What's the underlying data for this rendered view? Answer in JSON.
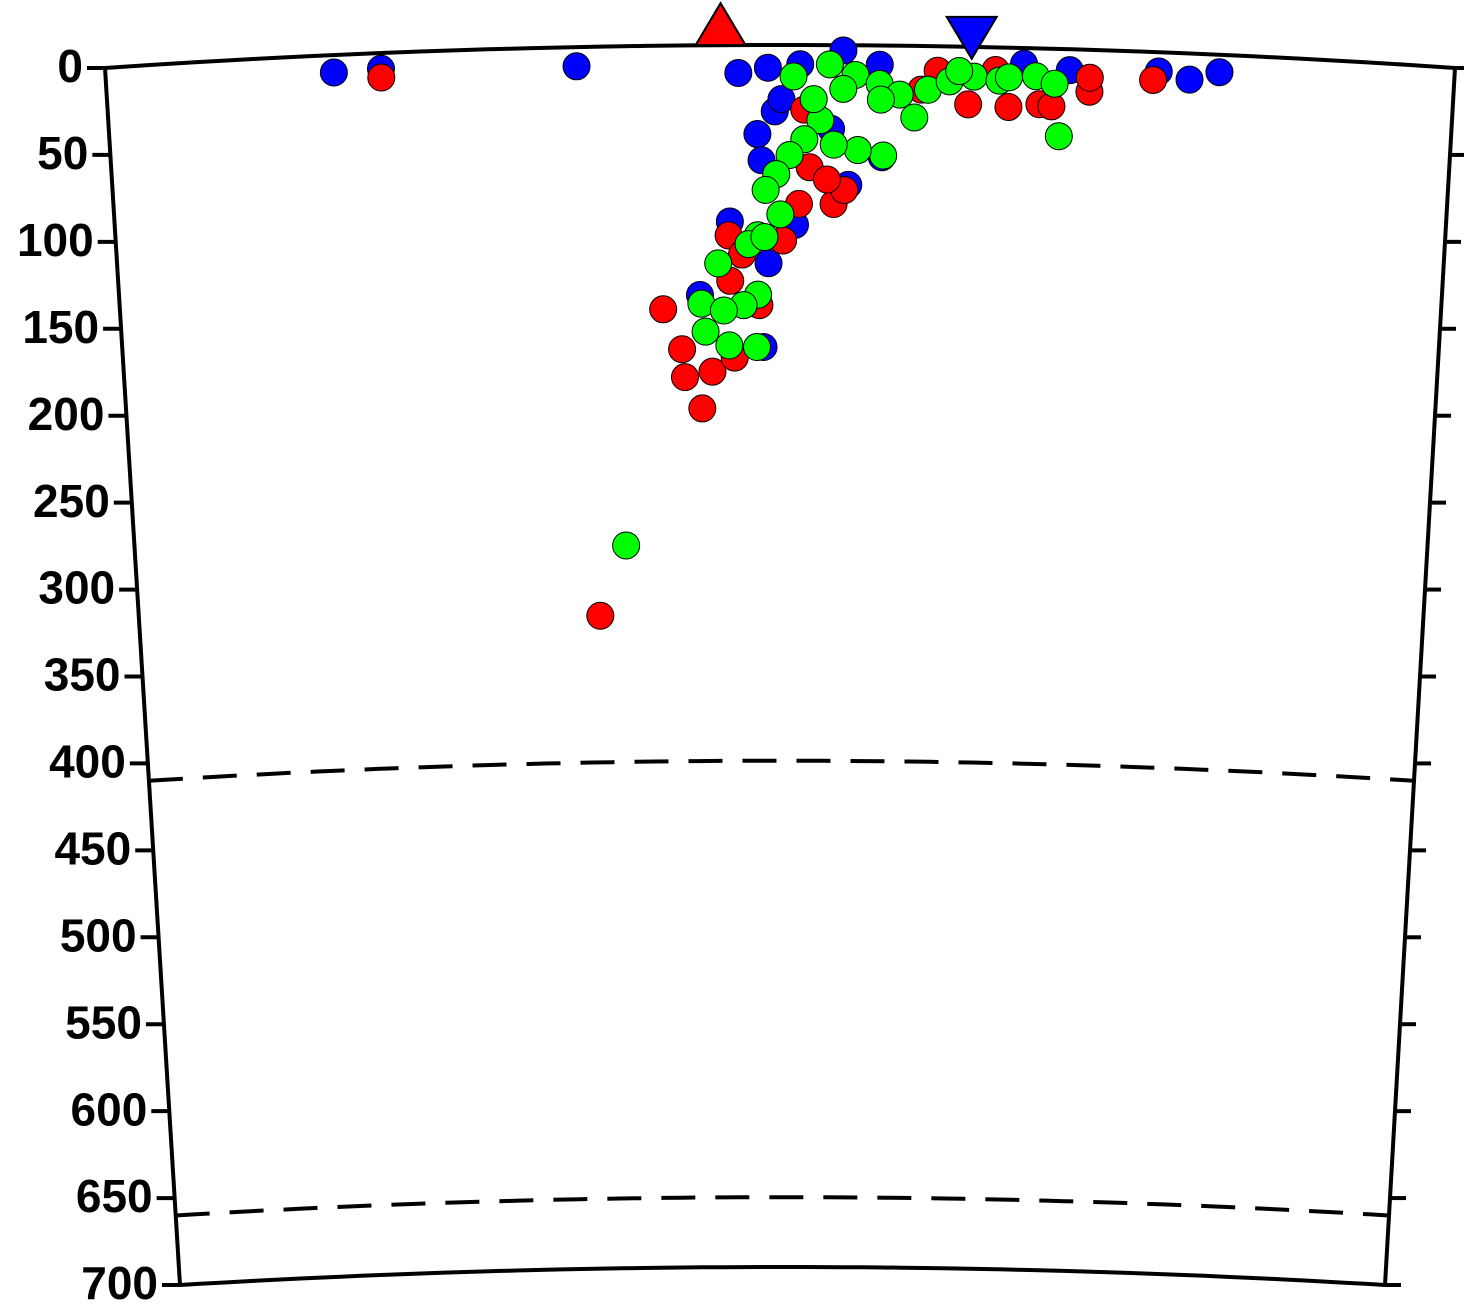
{
  "chart_data": {
    "type": "scatter",
    "xlim": [
      0,
      100
    ],
    "ylim": [
      0,
      700
    ],
    "yticks": [
      0,
      50,
      100,
      150,
      200,
      250,
      300,
      350,
      400,
      450,
      500,
      550,
      600,
      650,
      700
    ],
    "y_inverted": true,
    "reference_lines": [
      410,
      660
    ],
    "markers": [
      {
        "x": 45.6,
        "color": "#ff0000",
        "shape": "triangle-up"
      },
      {
        "x": 64.2,
        "color": "#0000ff",
        "shape": "triangle-down"
      }
    ],
    "series": [
      {
        "color": "#0000ff",
        "x": [
          16.9,
          20.4,
          34.9,
          46.9,
          49.1,
          51.5,
          54.7,
          57.4,
          68.1,
          71.5,
          78.1,
          80.4,
          82.6,
          48.3,
          48.6,
          49.6,
          49.1,
          46.2,
          51.1,
          43.9,
          48.7,
          57.6,
          55.1,
          53.8,
          50.1
        ],
        "values": [
          10,
          9,
          11,
          16,
          13,
          11,
          3,
          11,
          9,
          12,
          11,
          15,
          10,
          51,
          66,
          38,
          125,
          101,
          103,
          143,
          173,
          64,
          80,
          48,
          31
        ]
      },
      {
        "color": "#ff0000",
        "x": [
          20.4,
          41.1,
          42.5,
          42.7,
          44.0,
          44.8,
          46.5,
          48.4,
          46.1,
          47.1,
          46.2,
          50.2,
          51.4,
          54.0,
          54.8,
          52.2,
          53.5,
          51.8,
          60.5,
          64.0,
          67.0,
          69.3,
          70.2,
          73.0,
          73.0,
          77.7,
          61.7,
          66.0,
          35.9
        ],
        "values": [
          14,
          151,
          174,
          190,
          208,
          187,
          179,
          149,
          109,
          120,
          135,
          112,
          91,
          91,
          83,
          70,
          77,
          37,
          25,
          33,
          34,
          32,
          33,
          24,
          16,
          16,
          14,
          13,
          326
        ]
      },
      {
        "color": "#00ff00",
        "x": [
          51.0,
          53.7,
          55.6,
          57.4,
          58.9,
          61.0,
          62.6,
          64.4,
          66.3,
          69.0,
          70.4,
          70.8,
          67.0,
          63.3,
          60.0,
          57.5,
          57.7,
          55.8,
          54.0,
          53.0,
          51.8,
          50.7,
          49.7,
          48.9,
          50.0,
          48.3,
          47.6,
          48.8,
          45.3,
          44.0,
          48.3,
          47.2,
          45.7,
          44.3,
          46.1,
          48.2,
          38.0,
          52.5,
          54.7
        ],
        "values": [
          18,
          11,
          17,
          22,
          28,
          25,
          20,
          17,
          19,
          16,
          20,
          50,
          17,
          14,
          41,
          31,
          63,
          60,
          57,
          43,
          54,
          63,
          74,
          83,
          97,
          109,
          114,
          110,
          125,
          148,
          143,
          149,
          152,
          164,
          172,
          173,
          286,
          31,
          25
        ]
      }
    ]
  }
}
